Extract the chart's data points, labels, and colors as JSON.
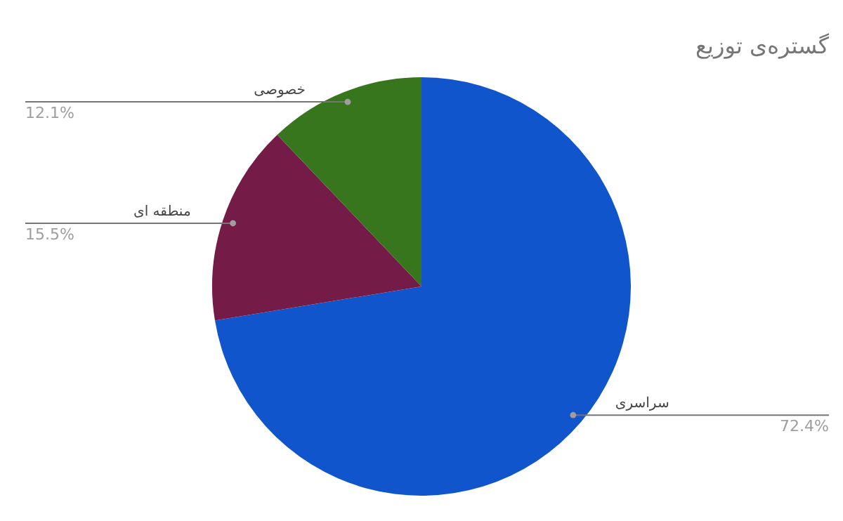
{
  "chart_data": {
    "type": "pie",
    "title": "گستره‌ی توزیع",
    "categories": [
      "سراسری",
      "منطقه ای",
      "خصوصی"
    ],
    "values": [
      72.4,
      15.5,
      12.1
    ],
    "colors": [
      "#1155cc",
      "#741b47",
      "#38761d"
    ],
    "value_labels": [
      "72.4%",
      "15.5%",
      "12.1%"
    ],
    "legend": false
  }
}
